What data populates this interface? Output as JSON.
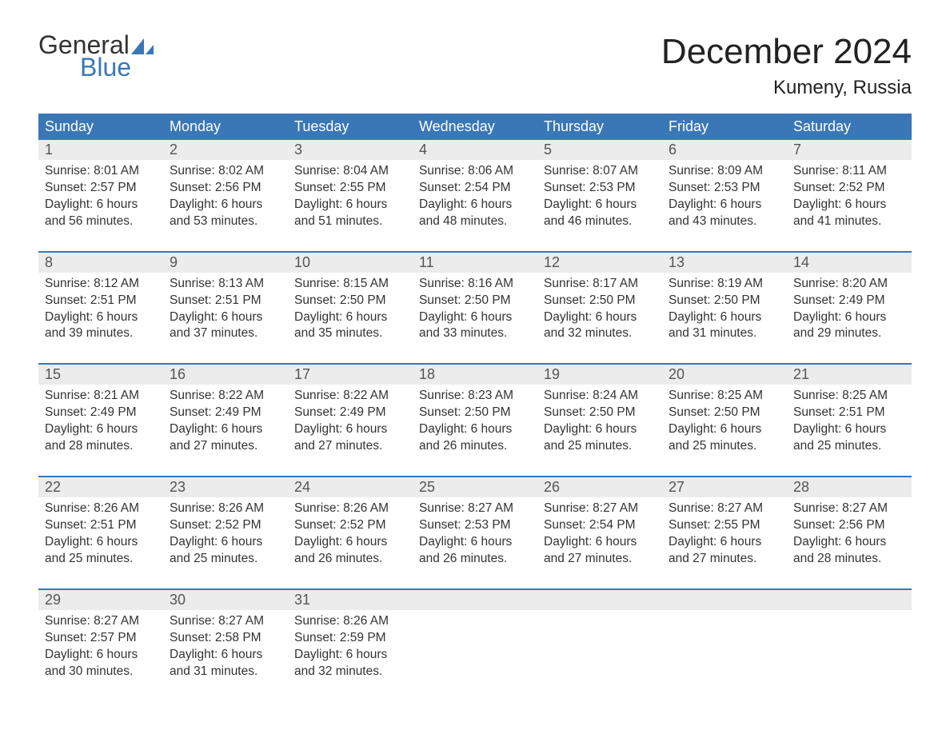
{
  "logo": {
    "text1": "General",
    "text2": "Blue",
    "sail_color": "#3a77b7"
  },
  "title": "December 2024",
  "location": "Kumeny, Russia",
  "colors": {
    "header_bg": "#3a77b7",
    "header_text": "#ffffff",
    "date_row_bg": "#ececec",
    "week_divider": "#3a77b7",
    "body_text": "#333333",
    "date_text": "#555555",
    "background": "#ffffff"
  },
  "typography": {
    "title_fontsize": 44,
    "location_fontsize": 24,
    "header_fontsize": 18,
    "date_fontsize": 18,
    "cell_fontsize": 15.5,
    "logo_fontsize": 32
  },
  "day_names": [
    "Sunday",
    "Monday",
    "Tuesday",
    "Wednesday",
    "Thursday",
    "Friday",
    "Saturday"
  ],
  "weeks": [
    {
      "dates": [
        "1",
        "2",
        "3",
        "4",
        "5",
        "6",
        "7"
      ],
      "cells": [
        {
          "sunrise": "Sunrise: 8:01 AM",
          "sunset": "Sunset: 2:57 PM",
          "dl1": "Daylight: 6 hours",
          "dl2": "and 56 minutes."
        },
        {
          "sunrise": "Sunrise: 8:02 AM",
          "sunset": "Sunset: 2:56 PM",
          "dl1": "Daylight: 6 hours",
          "dl2": "and 53 minutes."
        },
        {
          "sunrise": "Sunrise: 8:04 AM",
          "sunset": "Sunset: 2:55 PM",
          "dl1": "Daylight: 6 hours",
          "dl2": "and 51 minutes."
        },
        {
          "sunrise": "Sunrise: 8:06 AM",
          "sunset": "Sunset: 2:54 PM",
          "dl1": "Daylight: 6 hours",
          "dl2": "and 48 minutes."
        },
        {
          "sunrise": "Sunrise: 8:07 AM",
          "sunset": "Sunset: 2:53 PM",
          "dl1": "Daylight: 6 hours",
          "dl2": "and 46 minutes."
        },
        {
          "sunrise": "Sunrise: 8:09 AM",
          "sunset": "Sunset: 2:53 PM",
          "dl1": "Daylight: 6 hours",
          "dl2": "and 43 minutes."
        },
        {
          "sunrise": "Sunrise: 8:11 AM",
          "sunset": "Sunset: 2:52 PM",
          "dl1": "Daylight: 6 hours",
          "dl2": "and 41 minutes."
        }
      ]
    },
    {
      "dates": [
        "8",
        "9",
        "10",
        "11",
        "12",
        "13",
        "14"
      ],
      "cells": [
        {
          "sunrise": "Sunrise: 8:12 AM",
          "sunset": "Sunset: 2:51 PM",
          "dl1": "Daylight: 6 hours",
          "dl2": "and 39 minutes."
        },
        {
          "sunrise": "Sunrise: 8:13 AM",
          "sunset": "Sunset: 2:51 PM",
          "dl1": "Daylight: 6 hours",
          "dl2": "and 37 minutes."
        },
        {
          "sunrise": "Sunrise: 8:15 AM",
          "sunset": "Sunset: 2:50 PM",
          "dl1": "Daylight: 6 hours",
          "dl2": "and 35 minutes."
        },
        {
          "sunrise": "Sunrise: 8:16 AM",
          "sunset": "Sunset: 2:50 PM",
          "dl1": "Daylight: 6 hours",
          "dl2": "and 33 minutes."
        },
        {
          "sunrise": "Sunrise: 8:17 AM",
          "sunset": "Sunset: 2:50 PM",
          "dl1": "Daylight: 6 hours",
          "dl2": "and 32 minutes."
        },
        {
          "sunrise": "Sunrise: 8:19 AM",
          "sunset": "Sunset: 2:50 PM",
          "dl1": "Daylight: 6 hours",
          "dl2": "and 31 minutes."
        },
        {
          "sunrise": "Sunrise: 8:20 AM",
          "sunset": "Sunset: 2:49 PM",
          "dl1": "Daylight: 6 hours",
          "dl2": "and 29 minutes."
        }
      ]
    },
    {
      "dates": [
        "15",
        "16",
        "17",
        "18",
        "19",
        "20",
        "21"
      ],
      "cells": [
        {
          "sunrise": "Sunrise: 8:21 AM",
          "sunset": "Sunset: 2:49 PM",
          "dl1": "Daylight: 6 hours",
          "dl2": "and 28 minutes."
        },
        {
          "sunrise": "Sunrise: 8:22 AM",
          "sunset": "Sunset: 2:49 PM",
          "dl1": "Daylight: 6 hours",
          "dl2": "and 27 minutes."
        },
        {
          "sunrise": "Sunrise: 8:22 AM",
          "sunset": "Sunset: 2:49 PM",
          "dl1": "Daylight: 6 hours",
          "dl2": "and 27 minutes."
        },
        {
          "sunrise": "Sunrise: 8:23 AM",
          "sunset": "Sunset: 2:50 PM",
          "dl1": "Daylight: 6 hours",
          "dl2": "and 26 minutes."
        },
        {
          "sunrise": "Sunrise: 8:24 AM",
          "sunset": "Sunset: 2:50 PM",
          "dl1": "Daylight: 6 hours",
          "dl2": "and 25 minutes."
        },
        {
          "sunrise": "Sunrise: 8:25 AM",
          "sunset": "Sunset: 2:50 PM",
          "dl1": "Daylight: 6 hours",
          "dl2": "and 25 minutes."
        },
        {
          "sunrise": "Sunrise: 8:25 AM",
          "sunset": "Sunset: 2:51 PM",
          "dl1": "Daylight: 6 hours",
          "dl2": "and 25 minutes."
        }
      ]
    },
    {
      "dates": [
        "22",
        "23",
        "24",
        "25",
        "26",
        "27",
        "28"
      ],
      "cells": [
        {
          "sunrise": "Sunrise: 8:26 AM",
          "sunset": "Sunset: 2:51 PM",
          "dl1": "Daylight: 6 hours",
          "dl2": "and 25 minutes."
        },
        {
          "sunrise": "Sunrise: 8:26 AM",
          "sunset": "Sunset: 2:52 PM",
          "dl1": "Daylight: 6 hours",
          "dl2": "and 25 minutes."
        },
        {
          "sunrise": "Sunrise: 8:26 AM",
          "sunset": "Sunset: 2:52 PM",
          "dl1": "Daylight: 6 hours",
          "dl2": "and 26 minutes."
        },
        {
          "sunrise": "Sunrise: 8:27 AM",
          "sunset": "Sunset: 2:53 PM",
          "dl1": "Daylight: 6 hours",
          "dl2": "and 26 minutes."
        },
        {
          "sunrise": "Sunrise: 8:27 AM",
          "sunset": "Sunset: 2:54 PM",
          "dl1": "Daylight: 6 hours",
          "dl2": "and 27 minutes."
        },
        {
          "sunrise": "Sunrise: 8:27 AM",
          "sunset": "Sunset: 2:55 PM",
          "dl1": "Daylight: 6 hours",
          "dl2": "and 27 minutes."
        },
        {
          "sunrise": "Sunrise: 8:27 AM",
          "sunset": "Sunset: 2:56 PM",
          "dl1": "Daylight: 6 hours",
          "dl2": "and 28 minutes."
        }
      ]
    },
    {
      "dates": [
        "29",
        "30",
        "31",
        "",
        "",
        "",
        ""
      ],
      "cells": [
        {
          "sunrise": "Sunrise: 8:27 AM",
          "sunset": "Sunset: 2:57 PM",
          "dl1": "Daylight: 6 hours",
          "dl2": "and 30 minutes."
        },
        {
          "sunrise": "Sunrise: 8:27 AM",
          "sunset": "Sunset: 2:58 PM",
          "dl1": "Daylight: 6 hours",
          "dl2": "and 31 minutes."
        },
        {
          "sunrise": "Sunrise: 8:26 AM",
          "sunset": "Sunset: 2:59 PM",
          "dl1": "Daylight: 6 hours",
          "dl2": "and 32 minutes."
        },
        null,
        null,
        null,
        null
      ]
    }
  ]
}
